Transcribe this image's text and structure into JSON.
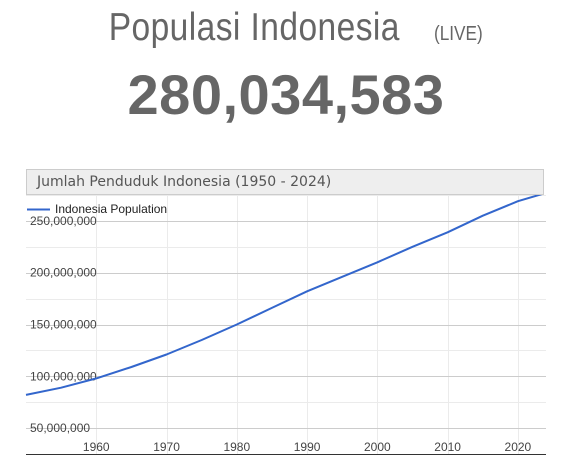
{
  "header": {
    "title": "Populasi Indonesia",
    "live_label": "(LIVE)",
    "population_counter": "280,034,583"
  },
  "chart_data": {
    "type": "line",
    "title": "Jumlah Penduduk Indonesia (1950 - 2024)",
    "xlabel": "",
    "ylabel": "",
    "legend": "top-left",
    "grid": true,
    "xlim": [
      1950,
      2024
    ],
    "ylim": [
      25000000,
      275000000
    ],
    "x_ticks": [
      1960,
      1970,
      1980,
      1990,
      2000,
      2010,
      2020
    ],
    "x_tick_labels": [
      "1960",
      "1970",
      "1980",
      "1990",
      "2000",
      "2010",
      "2020"
    ],
    "y_ticks": [
      50000000,
      100000000,
      150000000,
      200000000,
      250000000
    ],
    "y_tick_labels": [
      "50,000,000",
      "100,000,000",
      "150,000,000",
      "200,000,000",
      "250,000,000"
    ],
    "series": [
      {
        "name": "Indonesia Population",
        "color": "#3366cc",
        "x": [
          1950,
          1955,
          1960,
          1965,
          1970,
          1975,
          1980,
          1985,
          1990,
          1995,
          2000,
          2005,
          2010,
          2015,
          2020,
          2024
        ],
        "values": [
          82000000,
          89000000,
          98000000,
          109000000,
          121000000,
          135000000,
          150000000,
          166000000,
          182000000,
          196000000,
          210000000,
          225000000,
          239000000,
          255000000,
          269000000,
          277000000
        ]
      }
    ]
  }
}
